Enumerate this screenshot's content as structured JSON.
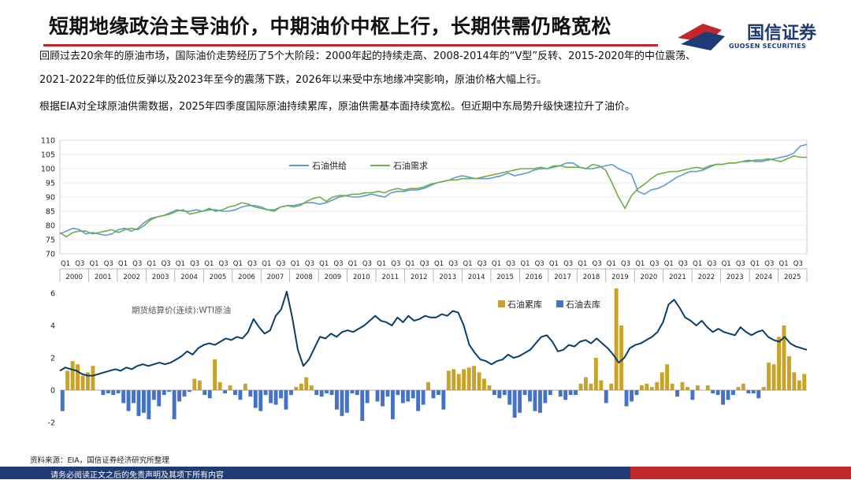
{
  "header": {
    "title": "短期地缘政治主导油价，中期油价中枢上行，长期供需仍略宽松",
    "logo_cn": "国信证券",
    "logo_en": "GUOSEN SECURITIES"
  },
  "text": {
    "line1": "回顾过去20余年的原油市场，国际油价走势经历了5个大阶段：2000年起的持续走高、2008-2014年的“V型”反转、2015-2020年的中位震荡、",
    "line2": "2021-2022年的低位反弹以及2023年至今的震荡下跌，2026年以来受中东地缘冲突影响，原油价格大幅上行。",
    "line3": "根据EIA对全球原油供需数据，2025年四季度国际原油持续累库，原油供需基本面持续宽松。但近期中东局势升级快速拉升了油价。"
  },
  "footer": {
    "source": "资料来源：EIA，国信证券经济研究所整理",
    "disclaimer": "请务必阅读正文之后的免责声明及其项下所有内容"
  },
  "colors": {
    "supply": "#5b9bd5",
    "demand": "#70ad47",
    "wti": "#0b3d6b",
    "build": "#c9a227",
    "draw": "#4472c4"
  },
  "chart_data": [
    {
      "type": "line",
      "series": [
        {
          "name": "石油供给",
          "values": [
            77,
            78,
            79,
            78.5,
            77,
            77.5,
            77,
            76.5,
            77,
            78.5,
            79,
            78,
            79,
            81,
            82.5,
            83,
            83.5,
            84.5,
            85.5,
            85,
            85,
            85.5,
            85,
            85.5,
            85.5,
            85,
            85,
            85.5,
            86.5,
            87,
            87,
            86.5,
            85.5,
            85.5,
            86.5,
            87,
            87,
            87.5,
            88,
            88,
            87.5,
            88,
            89,
            90,
            90.5,
            90,
            90,
            90.5,
            91,
            90.5,
            90,
            91.5,
            92,
            92,
            92.5,
            92.5,
            93,
            94,
            95,
            95.5,
            96,
            97,
            97.5,
            97,
            96.5,
            96.5,
            96.5,
            97,
            97.5,
            98.5,
            97.5,
            98,
            98.5,
            99.5,
            100,
            100,
            100.5,
            101,
            102,
            102,
            100.5,
            100,
            100,
            100.5,
            101,
            101.5,
            100,
            99,
            98,
            92,
            91,
            92.5,
            93,
            94,
            95.5,
            97,
            98,
            99,
            99,
            99.5,
            100.5,
            101.5,
            101.5,
            102,
            102,
            102.5,
            103,
            102.5,
            102.5,
            103,
            103.5,
            104,
            104.5,
            105.5,
            108,
            108.5
          ]
        },
        {
          "name": "石油需求",
          "values": [
            77.5,
            76,
            77.5,
            78,
            78,
            77,
            77.5,
            78,
            78.5,
            77.5,
            78.5,
            79,
            78.5,
            80,
            82,
            83,
            83.5,
            84,
            85,
            85.5,
            84,
            84.5,
            85,
            86,
            85,
            85.5,
            86.5,
            87,
            88,
            87.5,
            86.5,
            86,
            85.5,
            85,
            86.5,
            87,
            86.5,
            87,
            88.5,
            89.5,
            90,
            88.5,
            90,
            90.5,
            90.5,
            91,
            91,
            91.5,
            91.5,
            92,
            91.5,
            92.5,
            93,
            92.5,
            93,
            93,
            93.5,
            94.5,
            95,
            95.5,
            96,
            96,
            96.5,
            96.5,
            96.5,
            97,
            97.5,
            98,
            98.5,
            99,
            99.5,
            100,
            100,
            100,
            100.5,
            100,
            101,
            101,
            100.5,
            100.5,
            100.5,
            100,
            101.5,
            101,
            99.5,
            95,
            90,
            86,
            90.5,
            93,
            94.5,
            96.5,
            98,
            98.5,
            99,
            99,
            99.5,
            100,
            100.5,
            100,
            101,
            101.5,
            101.5,
            102,
            102,
            102.5,
            102.5,
            103,
            103,
            103.5,
            103,
            102.5,
            103.5,
            104.5,
            104,
            104
          ]
        }
      ],
      "ylim": [
        70,
        110
      ],
      "yticks": [
        "70",
        "75",
        "80",
        "85",
        "90",
        "95",
        "100",
        "105",
        "110"
      ],
      "quarter_labels": [
        "Q1",
        "Q3"
      ],
      "years": [
        "2000",
        "2001",
        "2002",
        "2003",
        "2004",
        "2005",
        "2006",
        "2007",
        "2008",
        "2009",
        "2010",
        "2011",
        "2012",
        "2013",
        "2014",
        "2015",
        "2016",
        "2017",
        "2018",
        "2019",
        "2020",
        "2021",
        "2022",
        "2023",
        "2024",
        "2025"
      ],
      "legend": "top-left"
    },
    {
      "type": "bar",
      "bar_series": [
        {
          "name": "石油累库",
          "values": [
            -1.3,
            1.2,
            1.8,
            1.6,
            0.9,
            1.1,
            1.5,
            0,
            -0.3,
            -0.2,
            -0.3,
            -0.2,
            -0.8,
            -1.3,
            -0.8,
            -1.6,
            -1.4,
            -1.8,
            -0.6,
            -1.0,
            -0.3,
            -0.1,
            -1.8,
            -0.7,
            -0.4,
            -0.1,
            0.7,
            0.6,
            -0.3,
            -0.5,
            1.9,
            0.5,
            -0.2,
            0.3,
            -0.3,
            -0.6,
            0.4,
            -0.4,
            -1.1,
            -1.3,
            -0.3,
            -0.8,
            -0.9,
            -0.5,
            -1.2,
            -0.3,
            0.2,
            0.4,
            0.8,
            0.3,
            -0.3,
            -0.4,
            -0.2,
            -0.3,
            -1.2,
            -1.6,
            -1.4,
            -0.2,
            -0.3,
            -1.9,
            -0.8,
            0,
            -0.7,
            -1.0,
            -0.4,
            -1.8,
            -0.3,
            -0.8,
            -0.7,
            -0.5,
            -1.3,
            -0.9,
            0.5,
            -0.5,
            -0.3,
            -1.2,
            1.2,
            1.3,
            1.0,
            1.3,
            1.4,
            1.5,
            1.1,
            0.7,
            0.3,
            -0.3,
            -0.5,
            -0.3,
            -0.9,
            -1.7,
            -1.4,
            -0.3,
            -0.7,
            -1.3,
            -1.4,
            -0.8,
            -0.3,
            0,
            -0.4,
            -0.6,
            -0.3,
            -0.3,
            0.4,
            0.8,
            0.4,
            2.0,
            0.6,
            -0.8,
            0.4,
            6.3,
            4.0,
            -1.0,
            -0.7,
            -0.3,
            0.3,
            0.4,
            0.2,
            0.5,
            1.1,
            1.6,
            0.4,
            -0.4,
            0.5,
            0.2,
            -0.6,
            0.3,
            0,
            0.3,
            -0.2,
            -0.3,
            -0.9,
            -0.6,
            -0.3,
            0.2,
            0.4,
            -0.2,
            -0.2,
            -0.5,
            0.2,
            1.7,
            1.6,
            3.3,
            4.0,
            2.1,
            1.1,
            0.6,
            1.0
          ],
          "note": "values interleaved; positive bars = 石油累库, negative bars = 石油去库 (read approximately from figure)"
        },
        {
          "name": "石油去库",
          "values_sign": "negative"
        }
      ],
      "line_series": {
        "name": "期货结算价(连续):WTI原油",
        "values": [
          1.2,
          1.4,
          1.3,
          1.2,
          1.0,
          0.9,
          0.9,
          1.0,
          1.1,
          1.2,
          1.3,
          1.2,
          1.4,
          1.3,
          1.5,
          1.6,
          1.5,
          1.6,
          1.7,
          1.6,
          1.7,
          1.9,
          2.1,
          2.4,
          2.2,
          2.6,
          2.8,
          2.9,
          2.8,
          3.0,
          3.2,
          3.1,
          3.3,
          3.2,
          3.6,
          4.4,
          3.9,
          3.5,
          3.7,
          4.6,
          5.0,
          6.1,
          4.5,
          2.5,
          1.5,
          1.9,
          2.6,
          3.3,
          3.2,
          3.5,
          3.3,
          3.6,
          3.7,
          3.6,
          3.8,
          4.0,
          4.3,
          4.6,
          4.3,
          4.2,
          4.0,
          4.5,
          4.2,
          4.6,
          4.3,
          4.4,
          4.6,
          4.5,
          4.5,
          4.7,
          4.6,
          4.9,
          4.8,
          4.0,
          2.8,
          2.3,
          1.9,
          1.8,
          1.6,
          1.8,
          1.9,
          2.2,
          2.0,
          2.1,
          2.3,
          2.5,
          2.9,
          3.3,
          3.4,
          3.0,
          2.4,
          2.5,
          2.8,
          2.7,
          3.0,
          3.1,
          2.9,
          3.2,
          2.9,
          2.6,
          2.2,
          1.7,
          2.0,
          2.6,
          2.8,
          2.9,
          3.1,
          3.3,
          3.6,
          4.2,
          5.3,
          5.6,
          5.1,
          4.5,
          4.3,
          4.0,
          4.3,
          3.9,
          3.6,
          3.8,
          3.6,
          3.5,
          3.4,
          3.9,
          3.6,
          3.4,
          3.6,
          3.7,
          3.3,
          3.1,
          3.0,
          3.3,
          2.9,
          2.7,
          2.6,
          2.5
        ],
        "note": "plotted on same axis"
      },
      "ylim": [
        -2,
        6
      ],
      "yticks": [
        "-2",
        "0",
        "2",
        "4",
        "6"
      ],
      "legend": "top-right"
    }
  ]
}
